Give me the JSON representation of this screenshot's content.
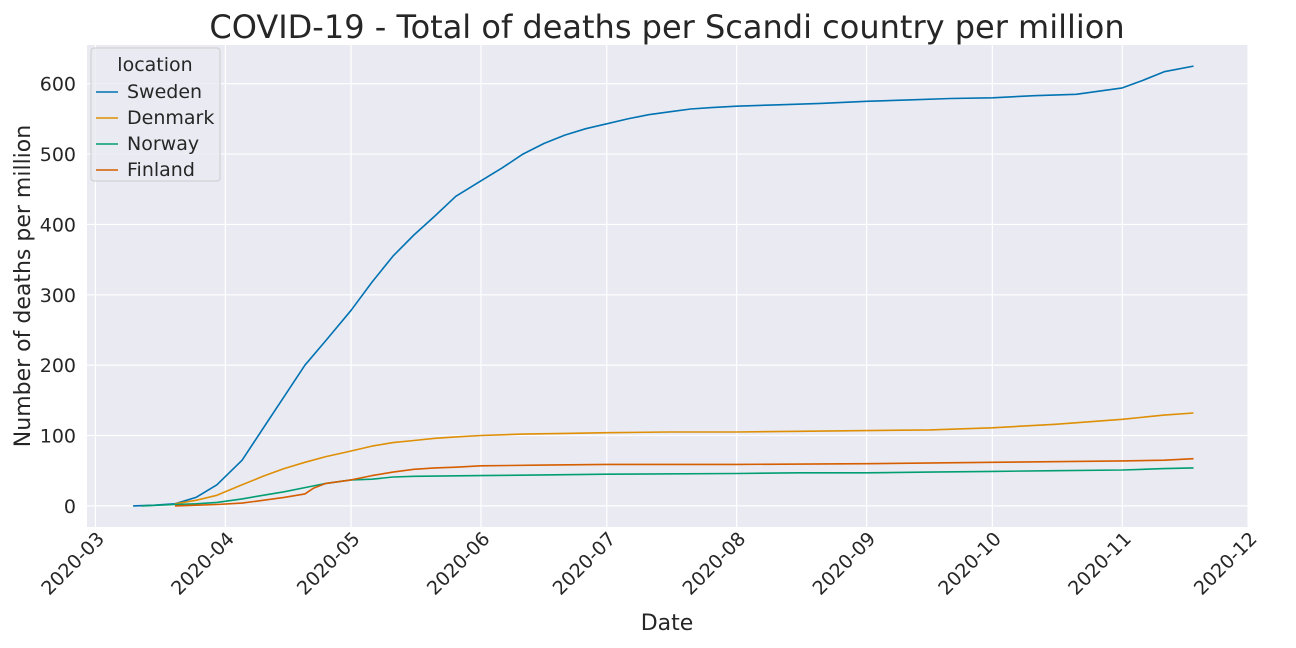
{
  "chart_data": {
    "type": "line",
    "title": "COVID-19 - Total of deaths per Scandi country per million",
    "xlabel": "Date",
    "ylabel": "Number of deaths per million",
    "xlim": [
      "2020-02-28",
      "2020-12-01"
    ],
    "ylim": [
      -30,
      655
    ],
    "x_ticks": [
      "2020-03",
      "2020-04",
      "2020-05",
      "2020-06",
      "2020-07",
      "2020-08",
      "2020-09",
      "2020-10",
      "2020-11",
      "2020-12"
    ],
    "y_ticks": [
      0,
      100,
      200,
      300,
      400,
      500,
      600
    ],
    "grid": true,
    "legend": {
      "title": "location",
      "placement": "top-left"
    },
    "series": [
      {
        "name": "Sweden",
        "color": "#0173b2",
        "points": [
          [
            "2020-03-10",
            0
          ],
          [
            "2020-03-15",
            1
          ],
          [
            "2020-03-20",
            3
          ],
          [
            "2020-03-25",
            12
          ],
          [
            "2020-03-30",
            30
          ],
          [
            "2020-04-05",
            65
          ],
          [
            "2020-04-10",
            110
          ],
          [
            "2020-04-15",
            155
          ],
          [
            "2020-04-20",
            200
          ],
          [
            "2020-04-25",
            235
          ],
          [
            "2020-05-01",
            278
          ],
          [
            "2020-05-06",
            318
          ],
          [
            "2020-05-11",
            355
          ],
          [
            "2020-05-16",
            385
          ],
          [
            "2020-05-21",
            412
          ],
          [
            "2020-05-26",
            440
          ],
          [
            "2020-06-01",
            462
          ],
          [
            "2020-06-06",
            480
          ],
          [
            "2020-06-11",
            500
          ],
          [
            "2020-06-16",
            515
          ],
          [
            "2020-06-21",
            527
          ],
          [
            "2020-06-26",
            536
          ],
          [
            "2020-07-01",
            543
          ],
          [
            "2020-07-06",
            550
          ],
          [
            "2020-07-11",
            556
          ],
          [
            "2020-07-16",
            560
          ],
          [
            "2020-07-21",
            564
          ],
          [
            "2020-07-26",
            566
          ],
          [
            "2020-08-01",
            568
          ],
          [
            "2020-08-11",
            570
          ],
          [
            "2020-08-21",
            572
          ],
          [
            "2020-09-01",
            575
          ],
          [
            "2020-09-11",
            577
          ],
          [
            "2020-09-21",
            579
          ],
          [
            "2020-10-01",
            580
          ],
          [
            "2020-10-11",
            583
          ],
          [
            "2020-10-21",
            585
          ],
          [
            "2020-11-01",
            594
          ],
          [
            "2020-11-06",
            605
          ],
          [
            "2020-11-11",
            617
          ],
          [
            "2020-11-18",
            625
          ]
        ]
      },
      {
        "name": "Denmark",
        "color": "#de8f05",
        "points": [
          [
            "2020-03-20",
            3
          ],
          [
            "2020-03-25",
            8
          ],
          [
            "2020-03-30",
            15
          ],
          [
            "2020-04-05",
            30
          ],
          [
            "2020-04-10",
            42
          ],
          [
            "2020-04-15",
            53
          ],
          [
            "2020-04-20",
            62
          ],
          [
            "2020-04-25",
            70
          ],
          [
            "2020-05-01",
            78
          ],
          [
            "2020-05-06",
            85
          ],
          [
            "2020-05-11",
            90
          ],
          [
            "2020-05-16",
            93
          ],
          [
            "2020-05-21",
            96
          ],
          [
            "2020-05-26",
            98
          ],
          [
            "2020-06-01",
            100
          ],
          [
            "2020-06-11",
            102
          ],
          [
            "2020-06-21",
            103
          ],
          [
            "2020-07-01",
            104
          ],
          [
            "2020-07-16",
            105
          ],
          [
            "2020-08-01",
            105
          ],
          [
            "2020-08-16",
            106
          ],
          [
            "2020-09-01",
            107
          ],
          [
            "2020-09-16",
            108
          ],
          [
            "2020-10-01",
            111
          ],
          [
            "2020-10-16",
            116
          ],
          [
            "2020-11-01",
            123
          ],
          [
            "2020-11-11",
            129
          ],
          [
            "2020-11-18",
            132
          ]
        ]
      },
      {
        "name": "Norway",
        "color": "#029e73",
        "points": [
          [
            "2020-03-12",
            0
          ],
          [
            "2020-03-20",
            2
          ],
          [
            "2020-03-25",
            3
          ],
          [
            "2020-03-30",
            5
          ],
          [
            "2020-04-05",
            10
          ],
          [
            "2020-04-10",
            15
          ],
          [
            "2020-04-15",
            20
          ],
          [
            "2020-04-20",
            26
          ],
          [
            "2020-04-25",
            32
          ],
          [
            "2020-05-01",
            37
          ],
          [
            "2020-05-06",
            38
          ],
          [
            "2020-05-11",
            41
          ],
          [
            "2020-05-16",
            42
          ],
          [
            "2020-06-01",
            43
          ],
          [
            "2020-06-16",
            44
          ],
          [
            "2020-07-01",
            45
          ],
          [
            "2020-08-01",
            46
          ],
          [
            "2020-08-16",
            47
          ],
          [
            "2020-09-01",
            47
          ],
          [
            "2020-09-16",
            48
          ],
          [
            "2020-10-01",
            49
          ],
          [
            "2020-10-16",
            50
          ],
          [
            "2020-11-01",
            51
          ],
          [
            "2020-11-11",
            53
          ],
          [
            "2020-11-18",
            54
          ]
        ]
      },
      {
        "name": "Finland",
        "color": "#d55e00",
        "points": [
          [
            "2020-03-20",
            0
          ],
          [
            "2020-03-25",
            1
          ],
          [
            "2020-03-30",
            2
          ],
          [
            "2020-04-05",
            4
          ],
          [
            "2020-04-10",
            8
          ],
          [
            "2020-04-15",
            12
          ],
          [
            "2020-04-20",
            17
          ],
          [
            "2020-04-22",
            25
          ],
          [
            "2020-04-25",
            32
          ],
          [
            "2020-05-01",
            37
          ],
          [
            "2020-05-06",
            43
          ],
          [
            "2020-05-11",
            48
          ],
          [
            "2020-05-16",
            52
          ],
          [
            "2020-05-21",
            54
          ],
          [
            "2020-05-26",
            55
          ],
          [
            "2020-06-01",
            57
          ],
          [
            "2020-06-16",
            58
          ],
          [
            "2020-07-01",
            59
          ],
          [
            "2020-08-01",
            59
          ],
          [
            "2020-09-01",
            60
          ],
          [
            "2020-10-01",
            62
          ],
          [
            "2020-11-01",
            64
          ],
          [
            "2020-11-11",
            65
          ],
          [
            "2020-11-18",
            67
          ]
        ]
      }
    ]
  }
}
